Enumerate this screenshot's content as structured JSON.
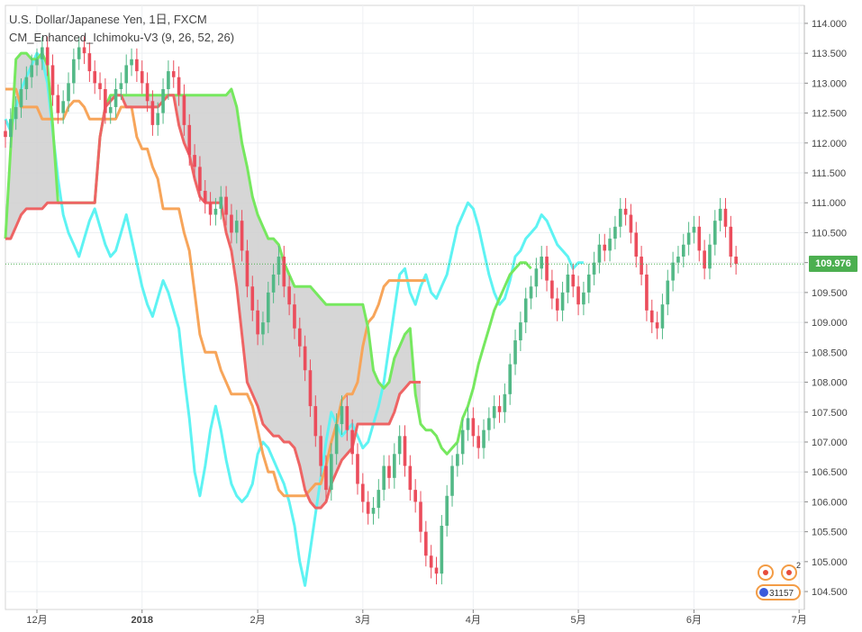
{
  "legend": {
    "line1": "U.S. Dollar/Japanese Yen, 1日, FXCM",
    "line2": "CM_Enhanced_Ichimoku-V3 (9, 26, 52, 26)"
  },
  "price_tag": "109.976",
  "badge": {
    "count": "2",
    "text": "31157"
  },
  "colors": {
    "up": "#53b987",
    "down": "#eb4d5c",
    "tenkan": "#5ef3f3",
    "kijun": "#f7a55a",
    "span_a": "#76e85f",
    "span_b": "#ee6464",
    "cloud": "#cfcfcf",
    "price_line": "#4caf50"
  },
  "chart_data": {
    "type": "line",
    "title": "U.S. Dollar/Japanese Yen, 1日, FXCM",
    "indicator": "CM_Enhanced_Ichimoku-V3 (9, 26, 52, 26)",
    "y_axis": {
      "position": "right",
      "ylim": [
        104.2,
        114.3
      ],
      "ticks": [
        "104.500",
        "105.000",
        "105.500",
        "106.000",
        "106.500",
        "107.000",
        "107.500",
        "108.000",
        "108.500",
        "109.000",
        "109.500",
        "110.000",
        "110.500",
        "111.000",
        "111.500",
        "112.000",
        "112.500",
        "113.000",
        "113.500",
        "114.000"
      ]
    },
    "x_axis": {
      "range_bars": [
        0,
        152
      ],
      "ticks": [
        {
          "label": "12月",
          "bar": 6,
          "bold": false
        },
        {
          "label": "2018",
          "bar": 26,
          "bold": true
        },
        {
          "label": "2月",
          "bar": 48,
          "bold": false
        },
        {
          "label": "3月",
          "bar": 68,
          "bold": false
        },
        {
          "label": "4月",
          "bar": 89,
          "bold": false
        },
        {
          "label": "5月",
          "bar": 109,
          "bold": false
        },
        {
          "label": "6月",
          "bar": 131,
          "bold": false
        },
        {
          "label": "7月",
          "bar": 151,
          "bold": false
        }
      ]
    },
    "last_price": 109.976,
    "grid": true,
    "candles_close": [
      112.1,
      112.4,
      112.6,
      112.9,
      113.1,
      113.3,
      113.4,
      113.6,
      113.3,
      112.8,
      112.5,
      112.7,
      113.0,
      113.4,
      113.6,
      113.5,
      113.2,
      113.0,
      112.9,
      112.5,
      112.6,
      112.9,
      113.0,
      113.3,
      113.4,
      113.2,
      113.0,
      112.7,
      112.3,
      112.5,
      112.9,
      113.2,
      113.1,
      112.8,
      112.3,
      111.8,
      111.6,
      111.2,
      111.0,
      110.8,
      110.9,
      111.1,
      110.8,
      110.5,
      110.7,
      110.2,
      109.6,
      109.2,
      108.8,
      109.0,
      109.5,
      109.8,
      110.1,
      109.6,
      109.3,
      108.9,
      108.6,
      108.2,
      107.6,
      107.1,
      106.6,
      106.2,
      106.8,
      107.3,
      107.6,
      107.2,
      106.8,
      106.3,
      106.0,
      105.8,
      105.9,
      106.2,
      106.6,
      106.4,
      106.8,
      107.1,
      106.6,
      106.2,
      106.0,
      105.5,
      105.1,
      104.9,
      104.8,
      105.6,
      106.1,
      106.6,
      106.8,
      107.2,
      107.4,
      107.1,
      106.9,
      107.2,
      107.4,
      107.6,
      107.5,
      107.8,
      108.3,
      108.7,
      109.0,
      109.4,
      109.6,
      109.9,
      110.1,
      109.7,
      109.4,
      109.2,
      109.5,
      109.8,
      109.6,
      109.3,
      109.5,
      109.8,
      110.0,
      110.3,
      110.2,
      110.4,
      110.6,
      110.9,
      110.8,
      110.5,
      110.1,
      109.8,
      109.2,
      109.0,
      108.9,
      109.3,
      109.7,
      110.0,
      110.1,
      110.3,
      110.5,
      110.6,
      110.2,
      109.9,
      110.3,
      110.7,
      110.9,
      110.6,
      110.1,
      109.98
    ],
    "series": [
      {
        "name": "Tenkan",
        "values": [
          112.4,
          112.2,
          112.6,
          112.9,
          113.1,
          113.3,
          113.5,
          113.4,
          113.0,
          112.2,
          111.4,
          110.8,
          110.5,
          110.3,
          110.1,
          110.4,
          110.7,
          110.9,
          110.6,
          110.3,
          110.1,
          110.2,
          110.5,
          110.8,
          110.4,
          110.0,
          109.6,
          109.3,
          109.1,
          109.4,
          109.7,
          109.5,
          109.2,
          108.9,
          108.1,
          107.4,
          106.5,
          106.1,
          106.6,
          107.2,
          107.6,
          107.2,
          106.7,
          106.3,
          106.1,
          106.0,
          106.1,
          106.3,
          106.8,
          107.0,
          106.9,
          106.7,
          106.5,
          106.3,
          106.0,
          105.6,
          105.0,
          104.6,
          105.2,
          105.8,
          106.4,
          107.0,
          107.5,
          107.3,
          107.1,
          107.2,
          107.3,
          107.1,
          106.9,
          107.0,
          107.3,
          107.6,
          108.0,
          108.6,
          109.2,
          109.8,
          109.9,
          109.5,
          109.3,
          109.6,
          109.8,
          109.5,
          109.4,
          109.6,
          109.8,
          110.2,
          110.6,
          110.8,
          111.0,
          110.9,
          110.6,
          110.2,
          109.8,
          109.5,
          109.3,
          109.4,
          109.7,
          110.1,
          110.2,
          110.4,
          110.5,
          110.6,
          110.8,
          110.7,
          110.5,
          110.3,
          110.2,
          110.1,
          109.9,
          110.0,
          110.0
        ]
      },
      {
        "name": "Kijun",
        "values": [
          112.9,
          112.9,
          112.9,
          112.6,
          112.6,
          112.6,
          112.6,
          112.4,
          112.4,
          112.4,
          112.4,
          112.4,
          112.6,
          112.7,
          112.7,
          112.6,
          112.4,
          112.4,
          112.4,
          112.4,
          112.4,
          112.4,
          112.6,
          112.6,
          112.6,
          112.1,
          111.9,
          111.9,
          111.6,
          111.4,
          110.9,
          110.9,
          110.9,
          110.9,
          110.5,
          110.2,
          109.5,
          108.8,
          108.5,
          108.5,
          108.5,
          108.2,
          108.0,
          107.8,
          107.8,
          107.8,
          107.8,
          107.6,
          107.2,
          106.8,
          106.5,
          106.5,
          106.2,
          106.1,
          106.1,
          106.1,
          106.1,
          106.1,
          106.2,
          106.3,
          106.3,
          106.6,
          107.0,
          107.3,
          107.7,
          107.8,
          107.8,
          108.0,
          108.6,
          109.0,
          109.1,
          109.3,
          109.6,
          109.7,
          109.7,
          109.7,
          109.7,
          109.7,
          109.7,
          109.7,
          109.7
        ]
      },
      {
        "name": "Senkou Span A",
        "values": [
          110.4,
          111.9,
          113.4,
          113.5,
          113.5,
          113.4,
          113.4,
          113.5,
          113.3,
          112.3,
          111.0,
          111.0,
          111.0,
          111.0,
          111.0,
          111.0,
          111.0,
          111.0,
          112.1,
          112.6,
          112.8,
          112.8,
          112.8,
          112.8,
          112.8,
          112.8,
          112.8,
          112.8,
          112.8,
          112.8,
          112.8,
          112.8,
          112.8,
          112.8,
          112.8,
          112.8,
          112.8,
          112.8,
          112.8,
          112.8,
          112.8,
          112.8,
          112.8,
          112.9,
          112.6,
          112.0,
          111.6,
          111.1,
          110.8,
          110.6,
          110.4,
          110.4,
          110.3,
          110.0,
          109.8,
          109.6,
          109.6,
          109.6,
          109.6,
          109.5,
          109.4,
          109.3,
          109.3,
          109.3,
          109.3,
          109.3,
          109.3,
          109.3,
          109.3,
          108.9,
          108.2,
          108.0,
          107.9,
          108.0,
          108.4,
          108.6,
          108.8,
          108.9,
          107.8,
          107.3,
          107.2,
          107.2,
          107.1,
          106.9,
          106.8,
          106.9,
          107.0,
          107.4,
          107.6,
          107.9,
          108.3,
          108.6,
          108.9,
          109.2,
          109.4,
          109.6,
          109.8,
          109.9,
          110.0,
          110.0,
          109.9
        ]
      },
      {
        "name": "Senkou Span B",
        "values": [
          110.4,
          110.4,
          110.6,
          110.8,
          110.9,
          110.9,
          110.9,
          110.9,
          111.0,
          111.0,
          111.0,
          111.0,
          111.0,
          111.0,
          111.0,
          111.0,
          111.0,
          111.0,
          112.1,
          112.6,
          112.7,
          112.8,
          112.8,
          112.6,
          112.6,
          112.6,
          112.6,
          112.6,
          112.6,
          112.6,
          112.7,
          112.8,
          112.8,
          112.3,
          112.0,
          111.8,
          111.4,
          111.1,
          111.0,
          111.0,
          111.0,
          111.0,
          110.5,
          110.2,
          109.6,
          108.8,
          108.0,
          107.8,
          107.6,
          107.3,
          107.2,
          107.1,
          107.1,
          107.0,
          107.0,
          106.9,
          106.6,
          106.2,
          106.0,
          105.9,
          105.9,
          106.0,
          106.3,
          106.5,
          106.7,
          106.8,
          106.9,
          107.3,
          107.3,
          107.3,
          107.3,
          107.3,
          107.3,
          107.3,
          107.5,
          107.8,
          107.9,
          108.0,
          108.0,
          108.0
        ]
      }
    ]
  }
}
